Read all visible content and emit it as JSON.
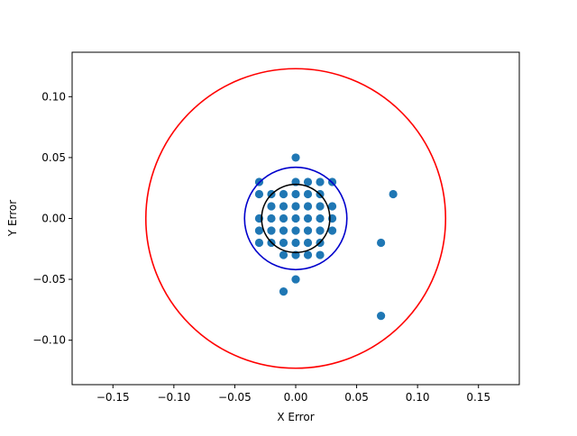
{
  "chart_data": {
    "type": "scatter",
    "title": "",
    "xlabel": "X Error",
    "ylabel": "Y Error",
    "xlim": [
      -0.1835,
      0.1835
    ],
    "ylim": [
      -0.1365,
      0.1365
    ],
    "grid": false,
    "x_ticks": [
      -0.15,
      -0.1,
      -0.05,
      0.0,
      0.05,
      0.1,
      0.15
    ],
    "x_tick_labels": [
      "−0.15",
      "−0.10",
      "−0.05",
      "0.00",
      "0.05",
      "0.10",
      "0.15"
    ],
    "y_ticks": [
      -0.1,
      -0.05,
      0.0,
      0.05,
      0.1
    ],
    "y_tick_labels": [
      "−0.10",
      "−0.05",
      "0.00",
      "0.05",
      "0.10"
    ],
    "point_color": "#1f77b4",
    "points": [
      {
        "x": 0.0,
        "y": 0.05
      },
      {
        "x": -0.03,
        "y": 0.03
      },
      {
        "x": 0.0,
        "y": 0.03
      },
      {
        "x": 0.01,
        "y": 0.03
      },
      {
        "x": 0.02,
        "y": 0.03
      },
      {
        "x": 0.03,
        "y": 0.03
      },
      {
        "x": -0.03,
        "y": 0.02
      },
      {
        "x": -0.02,
        "y": 0.02
      },
      {
        "x": -0.01,
        "y": 0.02
      },
      {
        "x": 0.0,
        "y": 0.02
      },
      {
        "x": 0.01,
        "y": 0.02
      },
      {
        "x": 0.02,
        "y": 0.02
      },
      {
        "x": -0.02,
        "y": 0.01
      },
      {
        "x": -0.01,
        "y": 0.01
      },
      {
        "x": 0.0,
        "y": 0.01
      },
      {
        "x": 0.01,
        "y": 0.01
      },
      {
        "x": 0.02,
        "y": 0.01
      },
      {
        "x": 0.03,
        "y": 0.01
      },
      {
        "x": -0.03,
        "y": 0.0
      },
      {
        "x": -0.02,
        "y": 0.0
      },
      {
        "x": -0.01,
        "y": 0.0
      },
      {
        "x": 0.0,
        "y": 0.0
      },
      {
        "x": 0.01,
        "y": 0.0
      },
      {
        "x": 0.02,
        "y": 0.0
      },
      {
        "x": 0.03,
        "y": 0.0
      },
      {
        "x": -0.03,
        "y": -0.01
      },
      {
        "x": -0.02,
        "y": -0.01
      },
      {
        "x": -0.01,
        "y": -0.01
      },
      {
        "x": 0.0,
        "y": -0.01
      },
      {
        "x": 0.01,
        "y": -0.01
      },
      {
        "x": 0.02,
        "y": -0.01
      },
      {
        "x": 0.03,
        "y": -0.01
      },
      {
        "x": -0.03,
        "y": -0.02
      },
      {
        "x": -0.02,
        "y": -0.02
      },
      {
        "x": -0.01,
        "y": -0.02
      },
      {
        "x": 0.0,
        "y": -0.02
      },
      {
        "x": 0.01,
        "y": -0.02
      },
      {
        "x": 0.02,
        "y": -0.02
      },
      {
        "x": -0.01,
        "y": -0.03
      },
      {
        "x": 0.0,
        "y": -0.03
      },
      {
        "x": 0.01,
        "y": -0.03
      },
      {
        "x": 0.02,
        "y": -0.03
      },
      {
        "x": 0.0,
        "y": -0.05
      },
      {
        "x": -0.01,
        "y": -0.06
      },
      {
        "x": 0.08,
        "y": 0.02
      },
      {
        "x": 0.07,
        "y": -0.02
      },
      {
        "x": 0.07,
        "y": -0.08
      }
    ],
    "circles": [
      {
        "center": [
          0,
          0
        ],
        "radius": 0.123,
        "color": "#ff0000"
      },
      {
        "center": [
          0,
          0
        ],
        "radius": 0.042,
        "color": "#0000cc"
      },
      {
        "center": [
          0,
          0
        ],
        "radius": 0.028,
        "color": "#000000"
      }
    ]
  }
}
